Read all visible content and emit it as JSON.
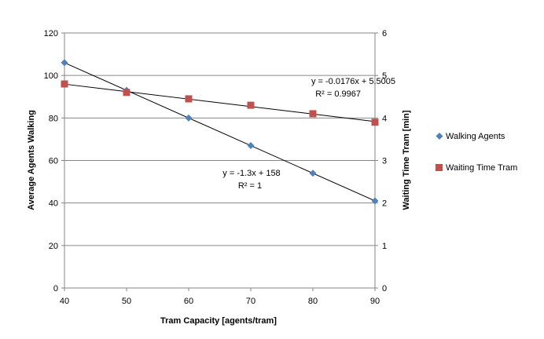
{
  "chart_data": {
    "type": "scatter",
    "title": "",
    "xlabel": "Tram Capacity [agents/tram]",
    "ylabel": "Average Agents Walking",
    "y2label": "Waiting Time Tram [min]",
    "xlim": [
      40,
      90
    ],
    "ylim": [
      0,
      120
    ],
    "y2lim": [
      0,
      6
    ],
    "x_ticks": [
      40,
      50,
      60,
      70,
      80,
      90
    ],
    "y_ticks": [
      0,
      20,
      40,
      60,
      80,
      100,
      120
    ],
    "y2_ticks": [
      0,
      1,
      2,
      3,
      4,
      5,
      6
    ],
    "grid": true,
    "legend_position": "right",
    "series": [
      {
        "name": "Walking Agents",
        "axis": "left",
        "marker": "diamond",
        "color": "#4F81BD",
        "x": [
          40,
          50,
          60,
          70,
          80,
          90
        ],
        "y": [
          106,
          93,
          80,
          67,
          54,
          41
        ]
      },
      {
        "name": "Waiting Time Tram",
        "axis": "right",
        "marker": "square",
        "color": "#C0504D",
        "x": [
          40,
          50,
          60,
          70,
          80,
          90
        ],
        "y": [
          4.8,
          4.6,
          4.45,
          4.3,
          4.1,
          3.9
        ]
      }
    ],
    "trendlines": [
      {
        "series": "Walking Agents",
        "axis": "left",
        "slope": -1.3,
        "intercept": 158,
        "equation": "y = -1.3x + 158",
        "r_squared": "R² = 1"
      },
      {
        "series": "Waiting Time Tram",
        "axis": "right",
        "slope": -0.0176,
        "intercept": 5.5005,
        "equation": "y = -0.0176x + 5.5005",
        "r_squared": "R² = 0.9967"
      }
    ]
  }
}
